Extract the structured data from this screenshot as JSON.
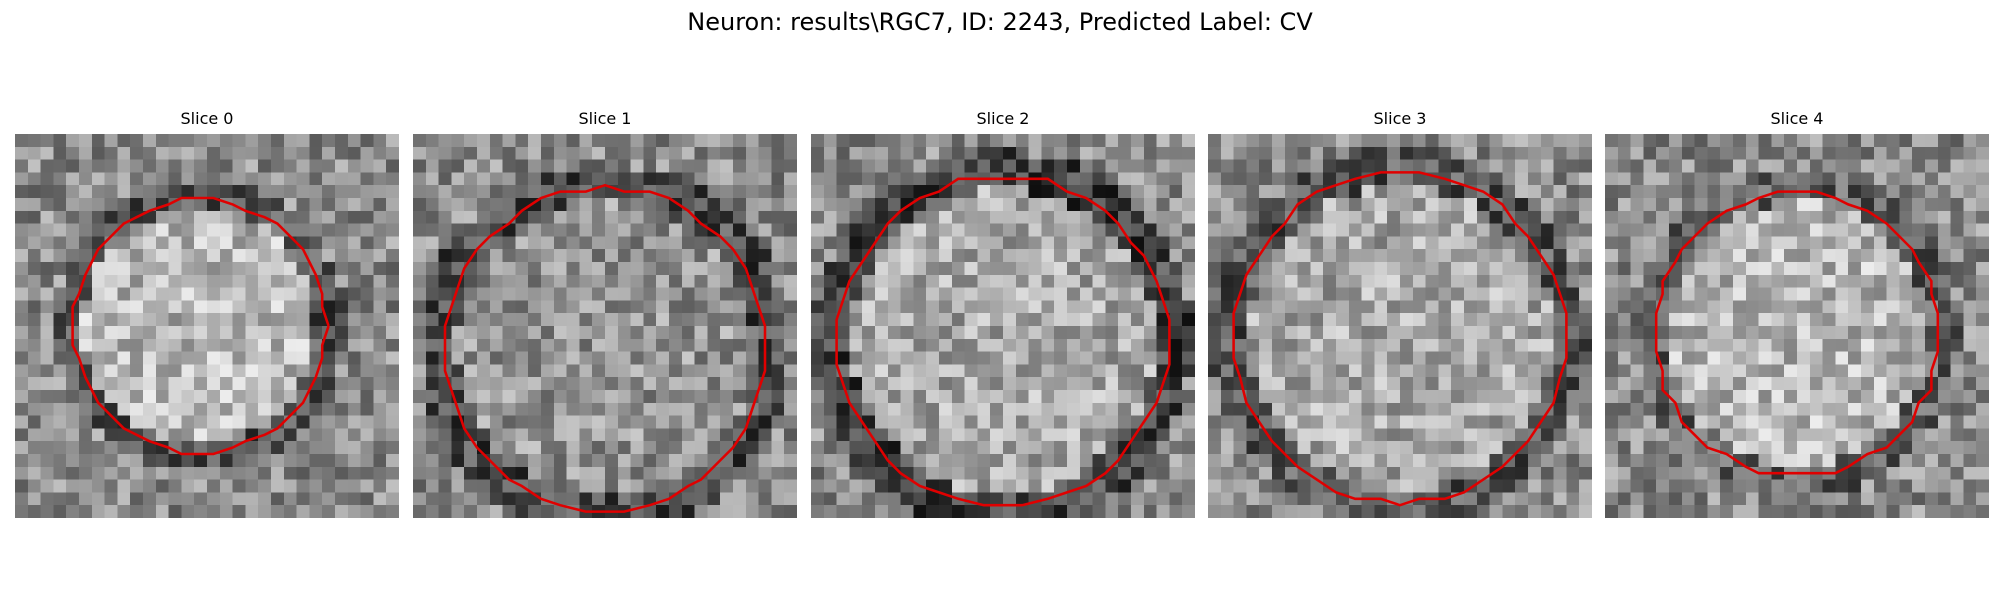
{
  "figure": {
    "suptitle": "Neuron: results\\RGC7, ID: 2243, Predicted Label: CV",
    "contour_color": "#e00000",
    "colormap": "gray"
  },
  "panels": [
    {
      "title": "Slice 0",
      "seed": 11,
      "center": [
        0.48,
        0.5
      ],
      "radius": 0.33,
      "bright": 0.72,
      "ring": 0.32
    },
    {
      "title": "Slice 1",
      "seed": 23,
      "center": [
        0.5,
        0.56
      ],
      "radius": 0.42,
      "bright": 0.58,
      "ring": 0.3
    },
    {
      "title": "Slice 2",
      "seed": 37,
      "center": [
        0.5,
        0.54
      ],
      "radius": 0.43,
      "bright": 0.66,
      "ring": 0.26
    },
    {
      "title": "Slice 3",
      "seed": 51,
      "center": [
        0.5,
        0.53
      ],
      "radius": 0.43,
      "bright": 0.66,
      "ring": 0.34
    },
    {
      "title": "Slice 4",
      "seed": 67,
      "center": [
        0.5,
        0.52
      ],
      "radius": 0.37,
      "bright": 0.72,
      "ring": 0.38
    }
  ]
}
